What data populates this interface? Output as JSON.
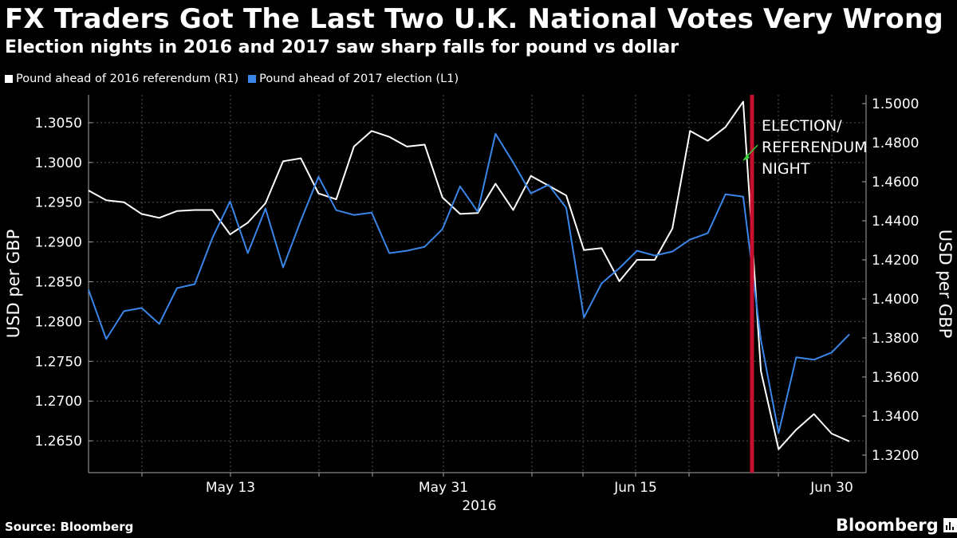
{
  "header": {
    "title": "FX Traders Got The Last Two U.K. National Votes Very Wrong",
    "subtitle": "Election nights in 2016 and 2017 saw sharp falls for pound vs dollar"
  },
  "footer": {
    "source": "Source: Bloomberg",
    "brand": "Bloomberg"
  },
  "colors": {
    "background": "#000000",
    "series_2016": "#ffffff",
    "series_2017": "#3a86e8",
    "event_line": "#c8102e",
    "arrow": "#3bd13b",
    "grid": "#555555"
  },
  "chart_data": {
    "type": "line",
    "title": "FX Traders Got The Last Two U.K. National Votes Very Wrong",
    "subtitle": "Election nights in 2016 and 2017 saw sharp falls for pound vs dollar",
    "x_tick_labels": [
      "May 13",
      "May 31",
      "Jun 15",
      "Jun 30"
    ],
    "x_year_label": "2016",
    "left_axis": {
      "label": "USD per GBP",
      "range": [
        1.261,
        1.3085
      ],
      "ticks": [
        "1.2650",
        "1.2700",
        "1.2750",
        "1.2800",
        "1.2850",
        "1.2900",
        "1.2950",
        "1.3000",
        "1.3050"
      ],
      "tick_values": [
        1.265,
        1.27,
        1.275,
        1.28,
        1.285,
        1.29,
        1.295,
        1.3,
        1.305
      ]
    },
    "right_axis": {
      "label": "USD per GBP",
      "range": [
        1.311,
        1.5045
      ],
      "ticks": [
        "1.3200",
        "1.3400",
        "1.3600",
        "1.3800",
        "1.4000",
        "1.4200",
        "1.4400",
        "1.4600",
        "1.4800",
        "1.5000"
      ],
      "tick_values": [
        1.32,
        1.34,
        1.36,
        1.38,
        1.4,
        1.42,
        1.44,
        1.46,
        1.48,
        1.5
      ]
    },
    "series": [
      {
        "name": "Pound ahead of 2016 referendum (R1)",
        "legend": "Pound ahead of 2016 referendum (R1)",
        "axis": "right",
        "color": "#ffffff",
        "values": [
          1.4555,
          1.4505,
          1.4495,
          1.4435,
          1.4415,
          1.445,
          1.4455,
          1.4455,
          1.433,
          1.439,
          1.449,
          1.4705,
          1.472,
          1.454,
          1.451,
          1.478,
          1.486,
          1.483,
          1.478,
          1.479,
          1.452,
          1.4435,
          1.444,
          1.459,
          1.4455,
          1.463,
          1.458,
          1.453,
          1.425,
          1.426,
          1.409,
          1.42,
          1.42,
          1.436,
          1.486,
          1.481,
          1.488,
          1.501,
          1.363,
          1.323,
          1.333,
          1.341,
          1.331,
          1.327
        ]
      },
      {
        "name": "Pound ahead of 2017 election (L1)",
        "legend": "Pound ahead of 2017 election (L1)",
        "axis": "left",
        "color": "#3a86e8",
        "values": [
          1.284,
          1.2778,
          1.2813,
          1.2817,
          1.2797,
          1.2842,
          1.2847,
          1.2905,
          1.2951,
          1.2886,
          1.2942,
          1.2868,
          1.2927,
          1.2982,
          1.294,
          1.2934,
          1.2937,
          1.2886,
          1.2889,
          1.2894,
          1.2916,
          1.297,
          1.2938,
          1.3036,
          1.3,
          1.2961,
          1.2972,
          1.2943,
          1.2805,
          1.2848,
          1.2867,
          1.2889,
          1.2883,
          1.2888,
          1.2903,
          1.2911,
          1.296,
          1.2957,
          1.2777,
          1.266,
          1.2755,
          1.2752,
          1.2761,
          1.2784
        ]
      }
    ],
    "event_index": 37.5,
    "annotation": [
      "ELECTION/",
      "REFERENDUM",
      "NIGHT"
    ],
    "legend_position": "top-left",
    "grid": true
  }
}
